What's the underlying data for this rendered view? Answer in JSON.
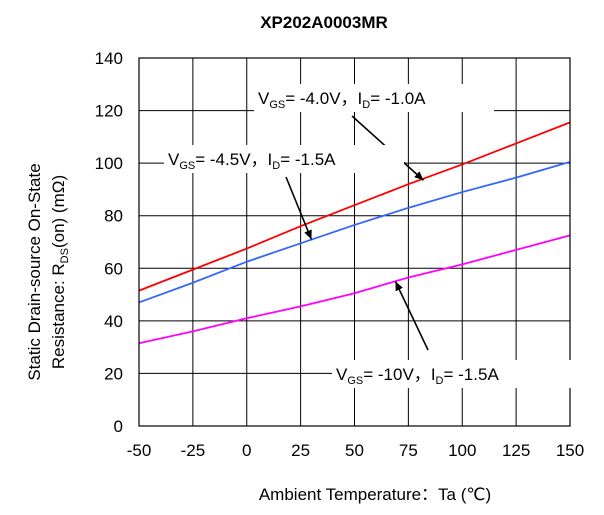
{
  "chart_data": {
    "type": "line",
    "title": "XP202A0003MR",
    "xlabel": "Ambient Temperature：Ta (℃)",
    "ylabel_line1": "Static Drain-source On-State",
    "ylabel_line2_prefix": "Resistance: R",
    "ylabel_line2_sub": "DS",
    "ylabel_line2_suffix": "(on)  (mΩ)",
    "xlim": [
      -50,
      150
    ],
    "ylim": [
      0,
      140
    ],
    "xticks": [
      -50,
      -25,
      0,
      25,
      50,
      75,
      100,
      125,
      150
    ],
    "yticks": [
      0,
      20,
      40,
      60,
      80,
      100,
      120,
      140
    ],
    "grid": true,
    "series": [
      {
        "name": "VGS=-4.0V, ID=-1.0A",
        "color": "#ff0000",
        "x": [
          -50,
          -25,
          0,
          25,
          50,
          75,
          100,
          125,
          150
        ],
        "y": [
          51.5,
          59.5,
          67.5,
          76,
          84,
          92,
          99.5,
          107.5,
          115.5
        ]
      },
      {
        "name": "VGS=-4.5V, ID=-1.5A",
        "color": "#3366ff",
        "x": [
          -50,
          -25,
          0,
          25,
          50,
          75,
          100,
          125,
          150
        ],
        "y": [
          47,
          54.5,
          62.5,
          69.5,
          76.5,
          83,
          89,
          94.5,
          100.5
        ]
      },
      {
        "name": "VGS=-10V, ID=-1.5A",
        "color": "#ff00ff",
        "x": [
          -50,
          -25,
          0,
          25,
          50,
          75,
          100,
          125,
          150
        ],
        "y": [
          31.5,
          36,
          41,
          45.5,
          50.5,
          56.5,
          61.5,
          67,
          72.5
        ]
      }
    ],
    "annotations": [
      {
        "v": "V",
        "vsub": "GS",
        "vval": "= -4.0V，",
        "i": "I",
        "isub": "D",
        "ival": "= -1.0A",
        "target": [
          82,
          93.5
        ]
      },
      {
        "v": "V",
        "vsub": "GS",
        "vval": "= -4.5V，",
        "i": "I",
        "isub": "D",
        "ival": "= -1.5A",
        "target": [
          30,
          71
        ]
      },
      {
        "v": "V",
        "vsub": "GS",
        "vval": "= -10V，",
        "i": "I",
        "isub": "D",
        "ival": "= -1.5A",
        "target": [
          69,
          55
        ]
      }
    ]
  }
}
